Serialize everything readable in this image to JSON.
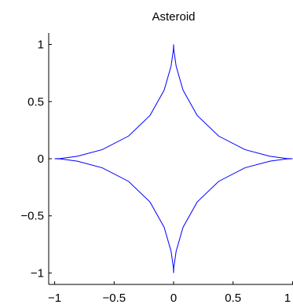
{
  "chart_data": {
    "type": "line",
    "title": "Asteroid",
    "xlabel": "",
    "ylabel": "",
    "xlim": [
      -1.05,
      1.05
    ],
    "ylim": [
      -1.1,
      1.1
    ],
    "xticks": [
      -1,
      -0.5,
      0,
      0.5,
      1
    ],
    "yticks": [
      -1,
      -0.5,
      0,
      0.5,
      1
    ],
    "xtick_labels": [
      "−1",
      "−0.5",
      "0",
      "0.5",
      "1"
    ],
    "ytick_labels": [
      "−1",
      "−0.5",
      "0",
      "0.5",
      "1"
    ],
    "grid": false,
    "series": [
      {
        "equation": "x = cos(t)^3, y = sin(t)^3, t in [0, 2π]",
        "color": "#0000ff",
        "x": [
          1,
          0.9511,
          0.8095,
          0.5997,
          0.3786,
          0.1984,
          0.0795,
          0.0213,
          0.0021,
          0,
          0,
          -0.0021,
          -0.0213,
          -0.0795,
          -0.1984,
          -0.3786,
          -0.5997,
          -0.8095,
          -0.9511,
          -1,
          -1,
          -0.9511,
          -0.8095,
          -0.5997,
          -0.3786,
          -0.1984,
          -0.0795,
          -0.0213,
          -0.0021,
          0,
          0,
          0.0021,
          0.0213,
          0.0795,
          0.1984,
          0.3786,
          0.5997,
          0.8095,
          0.9511,
          1
        ],
        "y": [
          0,
          0.0021,
          0.0213,
          0.0795,
          0.1984,
          0.3786,
          0.5997,
          0.8095,
          0.9511,
          1,
          1,
          0.9511,
          0.8095,
          0.5997,
          0.3786,
          0.1984,
          0.0795,
          0.0213,
          0.0021,
          0,
          0,
          -0.0021,
          -0.0213,
          -0.0795,
          -0.1984,
          -0.3786,
          -0.5997,
          -0.8095,
          -0.9511,
          -1,
          -1,
          -0.9511,
          -0.8095,
          -0.5997,
          -0.3786,
          -0.1984,
          -0.0795,
          -0.0213,
          -0.0021,
          0
        ]
      }
    ]
  }
}
